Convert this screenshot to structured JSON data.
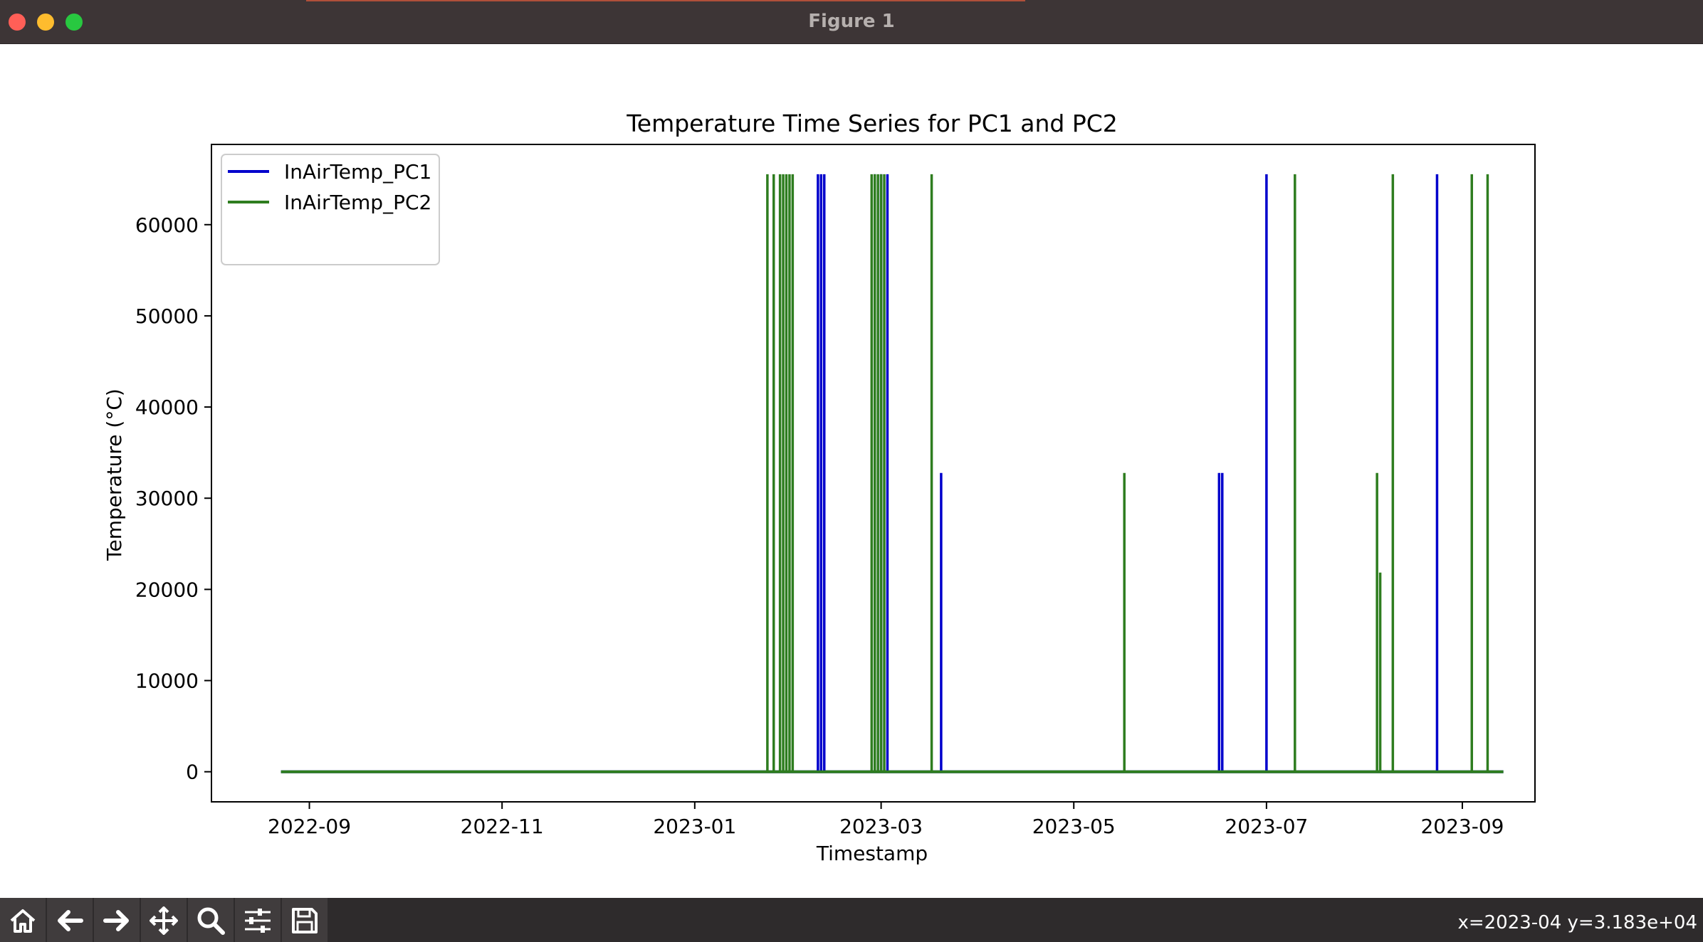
{
  "window": {
    "title": "Figure 1"
  },
  "toolbar": {
    "buttons": [
      {
        "name": "home-button",
        "icon": "home-icon"
      },
      {
        "name": "back-button",
        "icon": "arrow-left-icon"
      },
      {
        "name": "forward-button",
        "icon": "arrow-right-icon"
      },
      {
        "name": "pan-button",
        "icon": "move-icon"
      },
      {
        "name": "zoom-button",
        "icon": "magnifier-icon"
      },
      {
        "name": "configure-subplots-button",
        "icon": "sliders-icon"
      },
      {
        "name": "save-button",
        "icon": "floppy-disk-icon"
      }
    ],
    "coordinates": "x=2023-04 y=3.183e+04"
  },
  "chart_data": {
    "type": "line",
    "title": "Temperature Time Series for PC1 and PC2",
    "xlabel": "Timestamp",
    "ylabel": "Temperature (°C)",
    "xlim": [
      "2022-08-01",
      "2023-09-24"
    ],
    "ylim": [
      -3300,
      68800
    ],
    "x_ticks": [
      "2022-09",
      "2022-11",
      "2023-01",
      "2023-03",
      "2023-05",
      "2023-07",
      "2023-09"
    ],
    "y_ticks": [
      0,
      10000,
      20000,
      30000,
      40000,
      50000,
      60000
    ],
    "baseline": 0,
    "range": [
      "2022-08-23",
      "2023-09-14"
    ],
    "legend": "upper left",
    "series": [
      {
        "name": "InAirTemp_PC1",
        "color": "#0000cc",
        "spikes": [
          {
            "x": "2023-02-09",
            "y": 65535
          },
          {
            "x": "2023-02-10",
            "y": 65535
          },
          {
            "x": "2023-02-11",
            "y": 65535
          },
          {
            "x": "2023-02-27",
            "y": 65535
          },
          {
            "x": "2023-03-01",
            "y": 65535
          },
          {
            "x": "2023-03-03",
            "y": 65535
          },
          {
            "x": "2023-03-20",
            "y": 32767
          },
          {
            "x": "2023-06-16",
            "y": 32767
          },
          {
            "x": "2023-06-17",
            "y": 32767
          },
          {
            "x": "2023-07-01",
            "y": 65535
          },
          {
            "x": "2023-08-24",
            "y": 65535
          }
        ]
      },
      {
        "name": "InAirTemp_PC2",
        "color": "#2e7d1f",
        "spikes": [
          {
            "x": "2023-01-24",
            "y": 65535
          },
          {
            "x": "2023-01-26",
            "y": 65535
          },
          {
            "x": "2023-01-28",
            "y": 65535
          },
          {
            "x": "2023-01-29",
            "y": 65535
          },
          {
            "x": "2023-01-30",
            "y": 65535
          },
          {
            "x": "2023-01-31",
            "y": 65535
          },
          {
            "x": "2023-02-01",
            "y": 65535
          },
          {
            "x": "2023-02-26",
            "y": 65535
          },
          {
            "x": "2023-02-27",
            "y": 65535
          },
          {
            "x": "2023-02-28",
            "y": 65535
          },
          {
            "x": "2023-03-01",
            "y": 65535
          },
          {
            "x": "2023-03-02",
            "y": 65535
          },
          {
            "x": "2023-03-17",
            "y": 65535
          },
          {
            "x": "2023-05-17",
            "y": 32767
          },
          {
            "x": "2023-07-10",
            "y": 65535
          },
          {
            "x": "2023-08-05",
            "y": 32767
          },
          {
            "x": "2023-08-06",
            "y": 21845
          },
          {
            "x": "2023-08-10",
            "y": 65535
          },
          {
            "x": "2023-09-04",
            "y": 65535
          },
          {
            "x": "2023-09-09",
            "y": 65535
          }
        ]
      }
    ]
  }
}
